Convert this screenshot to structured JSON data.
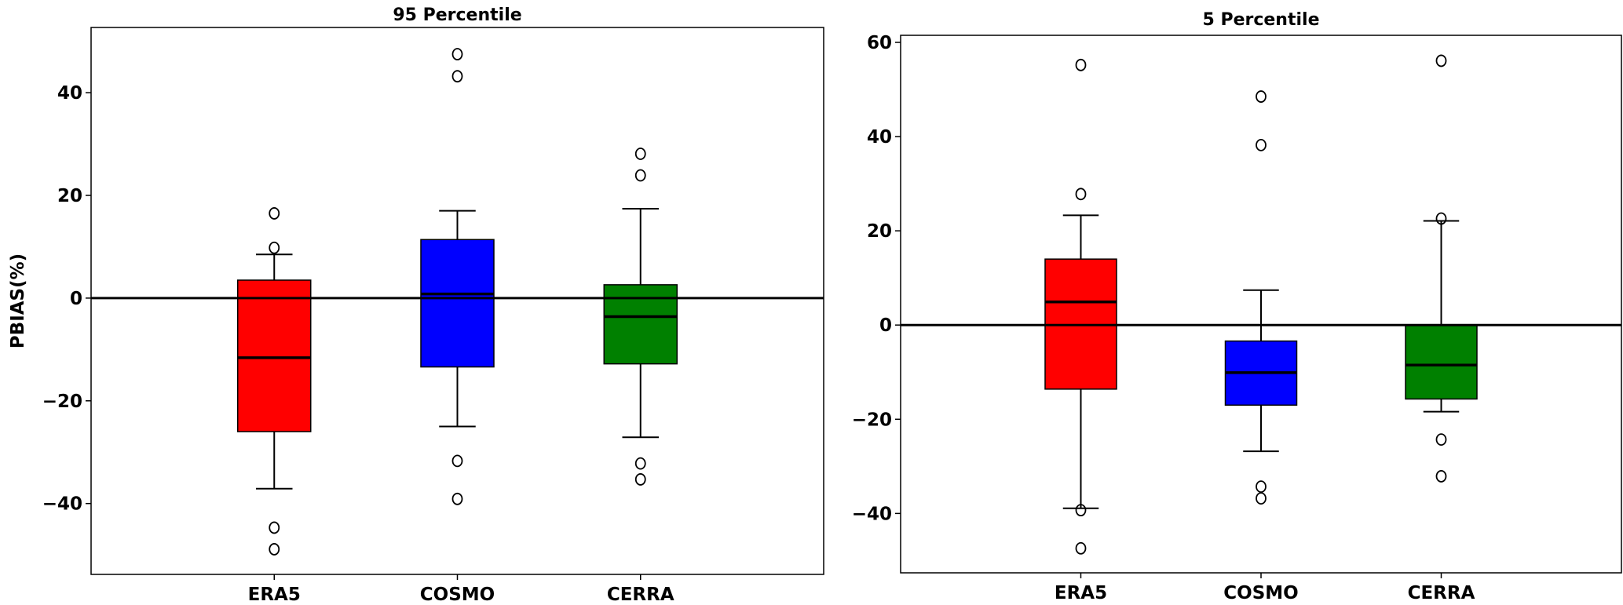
{
  "chart_data": [
    {
      "type": "boxplot",
      "title": "95 Percentile",
      "xlabel": "",
      "ylabel": "PBIAS(%)",
      "ylim": [
        -53.8,
        52.7
      ],
      "yticks": [
        -40,
        -20,
        0,
        20,
        40
      ],
      "ytick_labels": [
        "−40",
        "−20",
        "0",
        "20",
        "40"
      ],
      "reference_line": 0,
      "grid": false,
      "categories": [
        "ERA5",
        "COSMO",
        "CERRA"
      ],
      "colors": [
        "#ff0000",
        "#0000ff",
        "#008000"
      ],
      "boxes": [
        {
          "name": "ERA5",
          "whisker_low": -37.1,
          "q1": -26.0,
          "median": -11.6,
          "q3": 3.5,
          "whisker_high": 8.5,
          "outliers": [
            16.5,
            9.8,
            -44.7,
            -48.9
          ]
        },
        {
          "name": "COSMO",
          "whisker_low": -25.0,
          "q1": -13.4,
          "median": 0.8,
          "q3": 11.4,
          "whisker_high": 17.0,
          "outliers": [
            47.5,
            43.2,
            -31.7,
            -39.1
          ]
        },
        {
          "name": "CERRA",
          "whisker_low": -27.1,
          "q1": -12.8,
          "median": -3.6,
          "q3": 2.6,
          "whisker_high": 17.4,
          "outliers": [
            28.1,
            23.9,
            -32.2,
            -35.3
          ]
        }
      ]
    },
    {
      "type": "boxplot",
      "title": "5 Percentile",
      "xlabel": "",
      "ylabel": "",
      "ylim": [
        -52.6,
        61.5
      ],
      "yticks": [
        -40,
        -20,
        0,
        20,
        40,
        60
      ],
      "ytick_labels": [
        "−40",
        "−20",
        "0",
        "20",
        "40",
        "60"
      ],
      "reference_line": 0,
      "grid": false,
      "categories": [
        "ERA5",
        "COSMO",
        "CERRA"
      ],
      "colors": [
        "#ff0000",
        "#0000ff",
        "#008000"
      ],
      "boxes": [
        {
          "name": "ERA5",
          "whisker_low": -38.9,
          "q1": -13.6,
          "median": 4.9,
          "q3": 14.0,
          "whisker_high": 23.3,
          "outliers": [
            55.2,
            27.8,
            -39.3,
            -47.4
          ]
        },
        {
          "name": "COSMO",
          "whisker_low": -26.8,
          "q1": -17.0,
          "median": -10.1,
          "q3": -3.4,
          "whisker_high": 7.4,
          "outliers": [
            48.5,
            38.2,
            -34.3,
            -36.8
          ]
        },
        {
          "name": "CERRA",
          "whisker_low": -18.4,
          "q1": -15.7,
          "median": -8.5,
          "q3": -0.1,
          "whisker_high": 22.1,
          "outliers": [
            56.1,
            22.6,
            -24.3,
            -32.1
          ]
        }
      ]
    }
  ]
}
